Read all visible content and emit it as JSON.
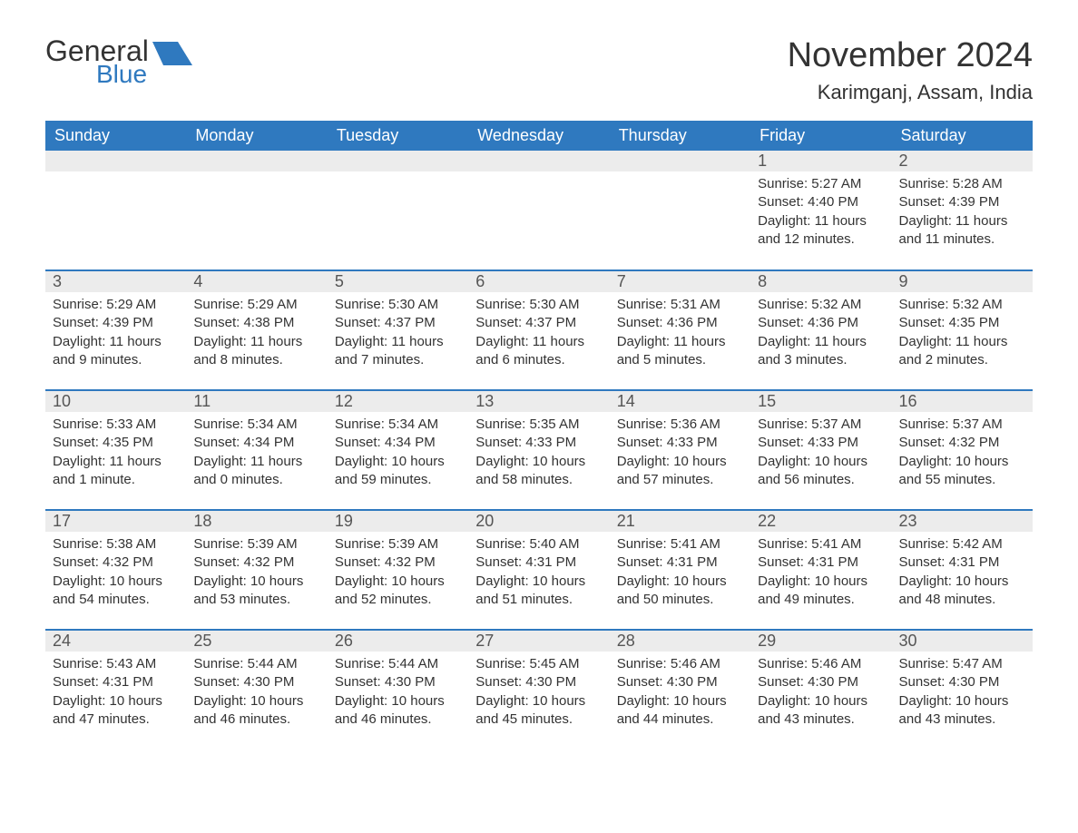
{
  "brand": {
    "general": "General",
    "blue": "Blue"
  },
  "title": "November 2024",
  "location": "Karimganj, Assam, India",
  "colors": {
    "accent": "#2f79bf",
    "header_row_bg": "#2f79bf",
    "header_row_text": "#ffffff",
    "day_num_bg": "#ececec",
    "body_text": "#333333",
    "background": "#ffffff"
  },
  "layout": {
    "columns": 7,
    "rows": 5,
    "first_day_column_index": 5
  },
  "day_headers": [
    "Sunday",
    "Monday",
    "Tuesday",
    "Wednesday",
    "Thursday",
    "Friday",
    "Saturday"
  ],
  "days": [
    {
      "n": 1,
      "sunrise": "5:27 AM",
      "sunset": "4:40 PM",
      "daylight": "11 hours and 12 minutes."
    },
    {
      "n": 2,
      "sunrise": "5:28 AM",
      "sunset": "4:39 PM",
      "daylight": "11 hours and 11 minutes."
    },
    {
      "n": 3,
      "sunrise": "5:29 AM",
      "sunset": "4:39 PM",
      "daylight": "11 hours and 9 minutes."
    },
    {
      "n": 4,
      "sunrise": "5:29 AM",
      "sunset": "4:38 PM",
      "daylight": "11 hours and 8 minutes."
    },
    {
      "n": 5,
      "sunrise": "5:30 AM",
      "sunset": "4:37 PM",
      "daylight": "11 hours and 7 minutes."
    },
    {
      "n": 6,
      "sunrise": "5:30 AM",
      "sunset": "4:37 PM",
      "daylight": "11 hours and 6 minutes."
    },
    {
      "n": 7,
      "sunrise": "5:31 AM",
      "sunset": "4:36 PM",
      "daylight": "11 hours and 5 minutes."
    },
    {
      "n": 8,
      "sunrise": "5:32 AM",
      "sunset": "4:36 PM",
      "daylight": "11 hours and 3 minutes."
    },
    {
      "n": 9,
      "sunrise": "5:32 AM",
      "sunset": "4:35 PM",
      "daylight": "11 hours and 2 minutes."
    },
    {
      "n": 10,
      "sunrise": "5:33 AM",
      "sunset": "4:35 PM",
      "daylight": "11 hours and 1 minute."
    },
    {
      "n": 11,
      "sunrise": "5:34 AM",
      "sunset": "4:34 PM",
      "daylight": "11 hours and 0 minutes."
    },
    {
      "n": 12,
      "sunrise": "5:34 AM",
      "sunset": "4:34 PM",
      "daylight": "10 hours and 59 minutes."
    },
    {
      "n": 13,
      "sunrise": "5:35 AM",
      "sunset": "4:33 PM",
      "daylight": "10 hours and 58 minutes."
    },
    {
      "n": 14,
      "sunrise": "5:36 AM",
      "sunset": "4:33 PM",
      "daylight": "10 hours and 57 minutes."
    },
    {
      "n": 15,
      "sunrise": "5:37 AM",
      "sunset": "4:33 PM",
      "daylight": "10 hours and 56 minutes."
    },
    {
      "n": 16,
      "sunrise": "5:37 AM",
      "sunset": "4:32 PM",
      "daylight": "10 hours and 55 minutes."
    },
    {
      "n": 17,
      "sunrise": "5:38 AM",
      "sunset": "4:32 PM",
      "daylight": "10 hours and 54 minutes."
    },
    {
      "n": 18,
      "sunrise": "5:39 AM",
      "sunset": "4:32 PM",
      "daylight": "10 hours and 53 minutes."
    },
    {
      "n": 19,
      "sunrise": "5:39 AM",
      "sunset": "4:32 PM",
      "daylight": "10 hours and 52 minutes."
    },
    {
      "n": 20,
      "sunrise": "5:40 AM",
      "sunset": "4:31 PM",
      "daylight": "10 hours and 51 minutes."
    },
    {
      "n": 21,
      "sunrise": "5:41 AM",
      "sunset": "4:31 PM",
      "daylight": "10 hours and 50 minutes."
    },
    {
      "n": 22,
      "sunrise": "5:41 AM",
      "sunset": "4:31 PM",
      "daylight": "10 hours and 49 minutes."
    },
    {
      "n": 23,
      "sunrise": "5:42 AM",
      "sunset": "4:31 PM",
      "daylight": "10 hours and 48 minutes."
    },
    {
      "n": 24,
      "sunrise": "5:43 AM",
      "sunset": "4:31 PM",
      "daylight": "10 hours and 47 minutes."
    },
    {
      "n": 25,
      "sunrise": "5:44 AM",
      "sunset": "4:30 PM",
      "daylight": "10 hours and 46 minutes."
    },
    {
      "n": 26,
      "sunrise": "5:44 AM",
      "sunset": "4:30 PM",
      "daylight": "10 hours and 46 minutes."
    },
    {
      "n": 27,
      "sunrise": "5:45 AM",
      "sunset": "4:30 PM",
      "daylight": "10 hours and 45 minutes."
    },
    {
      "n": 28,
      "sunrise": "5:46 AM",
      "sunset": "4:30 PM",
      "daylight": "10 hours and 44 minutes."
    },
    {
      "n": 29,
      "sunrise": "5:46 AM",
      "sunset": "4:30 PM",
      "daylight": "10 hours and 43 minutes."
    },
    {
      "n": 30,
      "sunrise": "5:47 AM",
      "sunset": "4:30 PM",
      "daylight": "10 hours and 43 minutes."
    }
  ],
  "labels": {
    "sunrise": "Sunrise:",
    "sunset": "Sunset:",
    "daylight": "Daylight:"
  }
}
